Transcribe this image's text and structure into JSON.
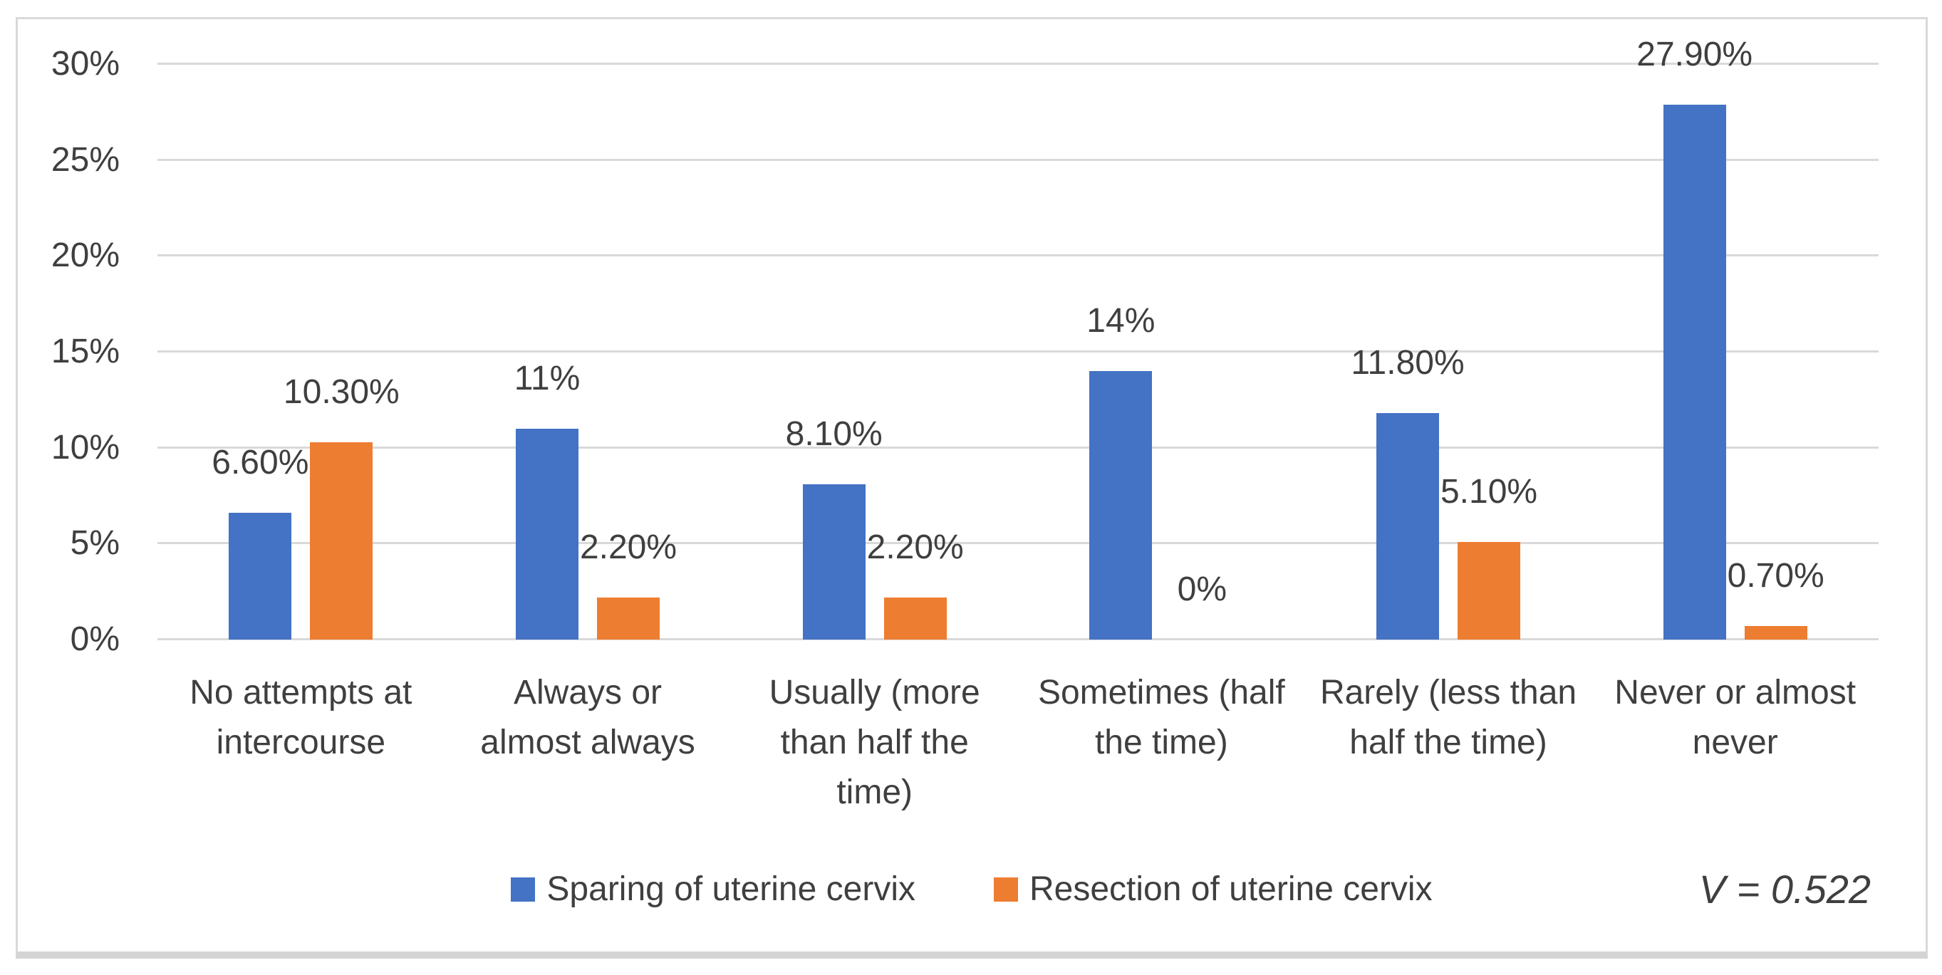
{
  "chart_data": {
    "type": "bar",
    "title": "",
    "xlabel": "",
    "ylabel": "",
    "ylim": [
      0,
      30
    ],
    "grid": true,
    "legend_position": "bottom",
    "y_ticks": [
      "0%",
      "5%",
      "10%",
      "15%",
      "20%",
      "25%",
      "30%"
    ],
    "categories": [
      "No attempts at\nintercourse",
      "Always or\nalmost always",
      "Usually (more\nthan half the\ntime)",
      "Sometimes (half\nthe time)",
      "Rarely (less than\nhalf the time)",
      "Never or almost\nnever"
    ],
    "series": [
      {
        "name": "Sparing of uterine cervix",
        "color": "#4472C4",
        "values": [
          6.6,
          11,
          8.1,
          14,
          11.8,
          27.9
        ],
        "labels": [
          "6.60%",
          "11%",
          "8.10%",
          "14%",
          "11.80%",
          "27.90%"
        ]
      },
      {
        "name": "Resection of uterine cervix",
        "color": "#ED7D31",
        "values": [
          10.3,
          2.2,
          2.2,
          0,
          5.1,
          0.7
        ],
        "labels": [
          "10.30%",
          "2.20%",
          "2.20%",
          "0%",
          "5.10%",
          "0.70%"
        ]
      }
    ],
    "annotation": "V = 0.522",
    "gridline_color": "#D9D9D9",
    "text_color": "#3F3F3F"
  }
}
